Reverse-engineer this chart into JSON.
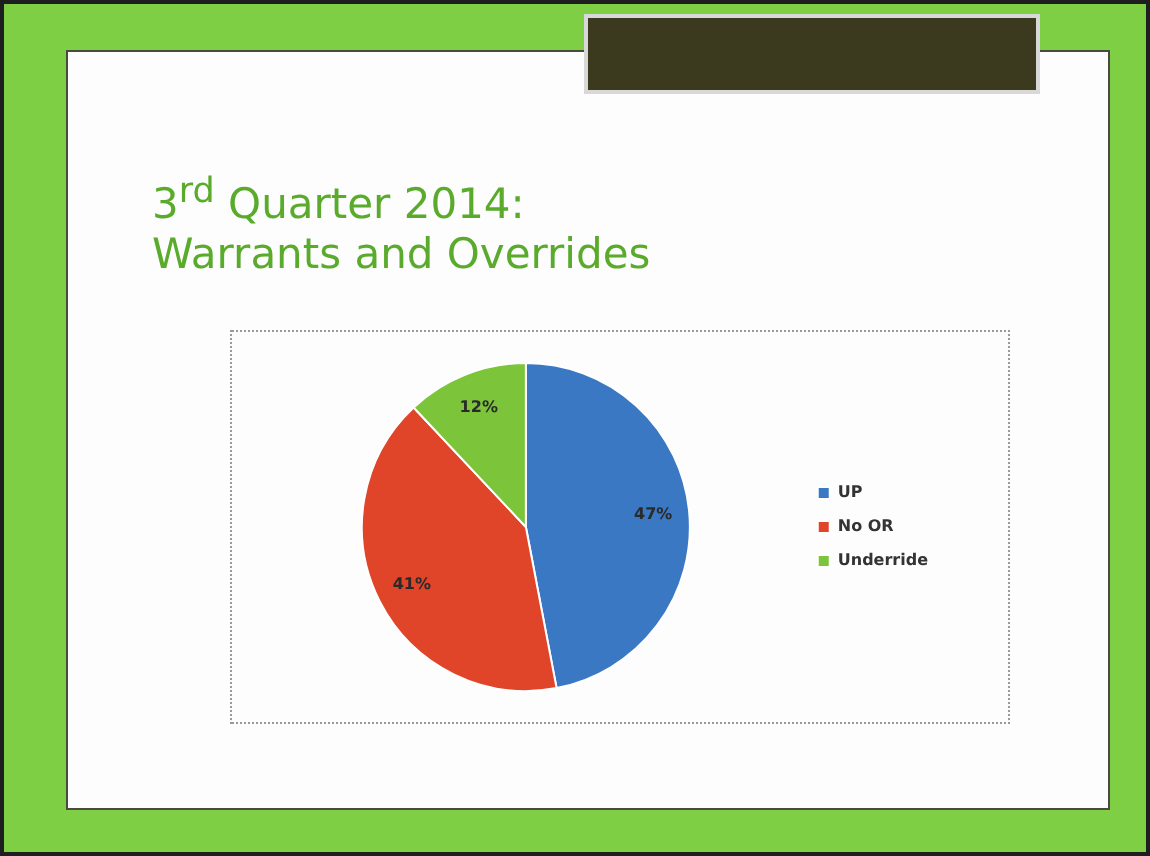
{
  "chart_data": {
    "type": "pie",
    "title": "3$^{rd}$ Quarter 2014:\nWarrants and Overrides",
    "categories": [
      "UP",
      "No OR",
      "Underride"
    ],
    "values": [
      47,
      41,
      12
    ],
    "colors": [
      "#3a78c4",
      "#e0452a",
      "#7cc43a"
    ],
    "value_labels": [
      "47%",
      "41%",
      "12%"
    ],
    "legend": "right"
  }
}
